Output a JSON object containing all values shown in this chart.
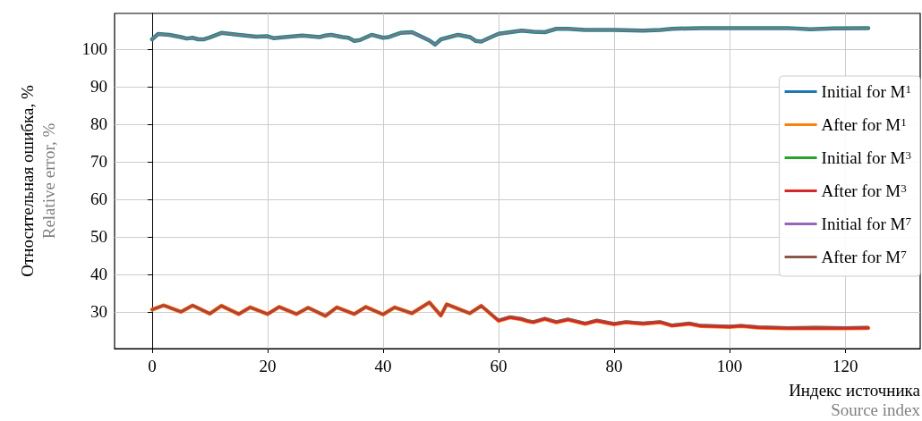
{
  "chart_data": {
    "type": "line",
    "xlabel": "Индекс источника\nSource index",
    "ylabel": "Относительная ошибка, %\nRelative error, %",
    "xlim": [
      -6.5,
      133
    ],
    "ylim": [
      20.2,
      109.5
    ],
    "xticks": [
      0,
      20,
      40,
      60,
      80,
      100,
      120
    ],
    "yticks": [
      30,
      40,
      50,
      60,
      70,
      80,
      90,
      100
    ],
    "grid": true,
    "legend": "right",
    "marker": "none",
    "line_style": "solid",
    "series": [
      {
        "name": "Initial for M$^{1}$",
        "color": "#1f77b4",
        "x": [
          0,
          1,
          3,
          5,
          6,
          7,
          8,
          9,
          10,
          12,
          15,
          18,
          20,
          21,
          23,
          26,
          29,
          30,
          31,
          33,
          34,
          35,
          36,
          38,
          40,
          41,
          43,
          45,
          48,
          49,
          50,
          53,
          55,
          56,
          57,
          58,
          60,
          62,
          64,
          66,
          68,
          70,
          72,
          75,
          80,
          85,
          88,
          90,
          95,
          100,
          110,
          114,
          118,
          124
        ],
        "values": [
          102.6,
          104.0,
          103.8,
          103.2,
          102.8,
          103.0,
          102.6,
          102.6,
          103.1,
          104.3,
          103.8,
          103.3,
          103.4,
          102.9,
          103.2,
          103.6,
          103.2,
          103.6,
          103.8,
          103.2,
          103.0,
          102.2,
          102.4,
          103.8,
          103.0,
          103.2,
          104.3,
          104.5,
          102.3,
          101.2,
          102.6,
          103.8,
          103.2,
          102.2,
          102.0,
          102.7,
          104.1,
          104.5,
          104.9,
          104.6,
          104.5,
          105.4,
          105.4,
          105.1,
          105.1,
          104.9,
          105.1,
          105.4,
          105.6,
          105.6,
          105.6,
          105.3,
          105.5,
          105.6
        ]
      },
      {
        "name": "After for M$^{1}$",
        "color": "#ff7f0e",
        "x": [
          0,
          2,
          5,
          7,
          10,
          12,
          15,
          17,
          20,
          22,
          25,
          27,
          30,
          32,
          35,
          37,
          40,
          42,
          45,
          48,
          50,
          51,
          55,
          57,
          60,
          62,
          64,
          65,
          66,
          68,
          70,
          72,
          75,
          77,
          80,
          82,
          85,
          88,
          90,
          93,
          95,
          100,
          102,
          105,
          110,
          115,
          120,
          124
        ],
        "values": [
          30.6,
          31.7,
          30.0,
          31.7,
          29.5,
          31.6,
          29.4,
          31.2,
          29.4,
          31.3,
          29.4,
          31.1,
          28.9,
          31.2,
          29.4,
          31.3,
          29.3,
          31.2,
          29.6,
          32.5,
          29.0,
          32.0,
          29.6,
          31.6,
          27.6,
          28.5,
          28.0,
          27.5,
          27.2,
          28.1,
          27.2,
          27.9,
          26.8,
          27.6,
          26.7,
          27.2,
          26.8,
          27.2,
          26.3,
          26.8,
          26.2,
          26.0,
          26.2,
          25.8,
          25.6,
          25.7,
          25.6,
          25.7
        ]
      },
      {
        "name": "Initial for M$^{3}$",
        "color": "#2ca02c",
        "x": [
          0,
          1,
          3,
          5,
          6,
          7,
          8,
          9,
          10,
          12,
          15,
          18,
          20,
          21,
          23,
          26,
          29,
          30,
          31,
          33,
          34,
          35,
          36,
          38,
          40,
          41,
          43,
          45,
          48,
          49,
          50,
          53,
          55,
          56,
          57,
          58,
          60,
          62,
          64,
          66,
          68,
          70,
          72,
          75,
          80,
          85,
          88,
          90,
          95,
          100,
          110,
          114,
          118,
          124
        ],
        "values": [
          102.6,
          104.0,
          103.8,
          103.2,
          102.8,
          103.0,
          102.6,
          102.6,
          103.1,
          104.3,
          103.8,
          103.3,
          103.4,
          102.9,
          103.2,
          103.6,
          103.2,
          103.6,
          103.8,
          103.2,
          103.0,
          102.2,
          102.4,
          103.8,
          103.0,
          103.2,
          104.3,
          104.5,
          102.3,
          101.2,
          102.6,
          103.8,
          103.2,
          102.2,
          102.0,
          102.7,
          104.1,
          104.5,
          104.9,
          104.6,
          104.5,
          105.4,
          105.4,
          105.1,
          105.1,
          104.9,
          105.1,
          105.4,
          105.6,
          105.6,
          105.6,
          105.3,
          105.5,
          105.6
        ]
      },
      {
        "name": "After for M$^{3}$",
        "color": "#d62728",
        "x": [
          0,
          2,
          5,
          7,
          10,
          12,
          15,
          17,
          20,
          22,
          25,
          27,
          30,
          32,
          35,
          37,
          40,
          42,
          45,
          48,
          50,
          51,
          55,
          57,
          60,
          62,
          64,
          65,
          66,
          68,
          70,
          72,
          75,
          77,
          80,
          82,
          85,
          88,
          90,
          93,
          95,
          100,
          102,
          105,
          110,
          115,
          120,
          124
        ],
        "values": [
          30.6,
          31.7,
          30.0,
          31.7,
          29.5,
          31.6,
          29.4,
          31.2,
          29.4,
          31.3,
          29.4,
          31.1,
          28.9,
          31.2,
          29.4,
          31.3,
          29.3,
          31.2,
          29.6,
          32.5,
          29.0,
          32.0,
          29.6,
          31.6,
          27.6,
          28.5,
          28.0,
          27.5,
          27.2,
          28.1,
          27.2,
          27.9,
          26.8,
          27.6,
          26.7,
          27.2,
          26.8,
          27.2,
          26.3,
          26.8,
          26.2,
          26.0,
          26.2,
          25.8,
          25.6,
          25.7,
          25.6,
          25.7
        ]
      },
      {
        "name": "Initial for M$^{7}$",
        "color": "#9467bd",
        "x": [
          0,
          1,
          3,
          5,
          6,
          7,
          8,
          9,
          10,
          12,
          15,
          18,
          20,
          21,
          23,
          26,
          29,
          30,
          31,
          33,
          34,
          35,
          36,
          38,
          40,
          41,
          43,
          45,
          48,
          49,
          50,
          53,
          55,
          56,
          57,
          58,
          60,
          62,
          64,
          66,
          68,
          70,
          72,
          75,
          80,
          85,
          88,
          90,
          95,
          100,
          110,
          114,
          118,
          124
        ],
        "values": [
          102.6,
          104.0,
          103.8,
          103.2,
          102.8,
          103.0,
          102.6,
          102.6,
          103.1,
          104.3,
          103.8,
          103.3,
          103.4,
          102.9,
          103.2,
          103.6,
          103.2,
          103.6,
          103.8,
          103.2,
          103.0,
          102.2,
          102.4,
          103.8,
          103.0,
          103.2,
          104.3,
          104.5,
          102.3,
          101.2,
          102.6,
          103.8,
          103.2,
          102.2,
          102.0,
          102.7,
          104.1,
          104.5,
          104.9,
          104.6,
          104.5,
          105.4,
          105.4,
          105.1,
          105.1,
          104.9,
          105.1,
          105.4,
          105.6,
          105.6,
          105.6,
          105.3,
          105.5,
          105.6
        ]
      },
      {
        "name": "After for M$^{7}$",
        "color": "#8c564b",
        "x": [
          0,
          2,
          5,
          7,
          10,
          12,
          15,
          17,
          20,
          22,
          25,
          27,
          30,
          32,
          35,
          37,
          40,
          42,
          45,
          48,
          50,
          51,
          55,
          57,
          60,
          62,
          64,
          65,
          66,
          68,
          70,
          72,
          75,
          77,
          80,
          82,
          85,
          88,
          90,
          93,
          95,
          100,
          102,
          105,
          110,
          115,
          120,
          124
        ],
        "values": [
          30.6,
          31.7,
          30.0,
          31.7,
          29.5,
          31.6,
          29.4,
          31.2,
          29.4,
          31.3,
          29.4,
          31.1,
          28.9,
          31.2,
          29.4,
          31.3,
          29.3,
          31.2,
          29.6,
          32.5,
          29.0,
          32.0,
          29.6,
          31.6,
          28.0,
          28.9,
          28.4,
          27.9,
          27.6,
          28.5,
          27.6,
          28.3,
          27.2,
          28.0,
          27.1,
          27.6,
          27.2,
          27.6,
          26.7,
          27.2,
          26.6,
          26.4,
          26.6,
          26.2,
          26.0,
          26.1,
          26.0,
          26.1
        ]
      }
    ]
  }
}
